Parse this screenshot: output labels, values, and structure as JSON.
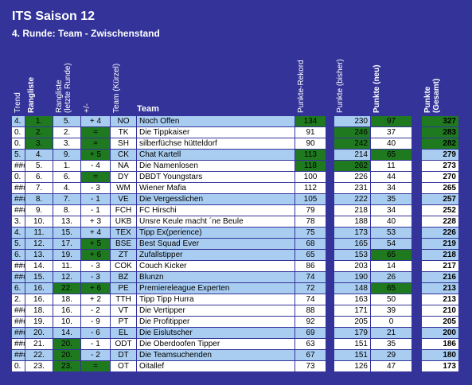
{
  "header": {
    "title": "ITS Saison 12",
    "subtitle": "4. Runde: Team - Zwischenstand"
  },
  "table": {
    "columns": [
      "Trend",
      "Rangliste",
      "Rangliste (letzte Runde)",
      "+/-",
      "Team (Kürzel)",
      "Team",
      "Punkte-Rekord",
      "Punkte (bisher)",
      "Punkte (neu)",
      "Punkte (Gesamt)"
    ],
    "rows": [
      [
        "4.",
        "1.",
        "5.",
        "+ 4",
        "NO",
        "Noch Offen",
        134,
        230,
        97,
        327
      ],
      [
        "0.",
        "2.",
        "2.",
        "=",
        "TK",
        "Die Tippkaiser",
        91,
        246,
        37,
        283
      ],
      [
        "0.",
        "3.",
        "3.",
        "=",
        "SH",
        "silberfüchse hütteldorf",
        90,
        242,
        40,
        282
      ],
      [
        "5.",
        "4.",
        "9.",
        "+ 5",
        "CK",
        "Chat Kartell",
        113,
        214,
        65,
        279
      ],
      [
        "###",
        "5.",
        "1.",
        "- 4",
        "NA",
        "Die Namenlosen",
        118,
        262,
        11,
        273
      ],
      [
        "0.",
        "6.",
        "6.",
        "=",
        "DY",
        "DBDT Youngstars",
        100,
        226,
        44,
        270
      ],
      [
        "###",
        "7.",
        "4.",
        "- 3",
        "WM",
        "Wiener Mafia",
        112,
        231,
        34,
        265
      ],
      [
        "###",
        "8.",
        "7.",
        "- 1",
        "VE",
        "Die Vergesslichen",
        105,
        222,
        35,
        257
      ],
      [
        "###",
        "9.",
        "8.",
        "- 1",
        "FCH",
        "FC Hirschi",
        79,
        218,
        34,
        252
      ],
      [
        "3.",
        "10.",
        "13.",
        "+ 3",
        "UKB",
        "Unsre Keule macht ´ne Beule",
        78,
        188,
        40,
        228
      ],
      [
        "4.",
        "11.",
        "15.",
        "+ 4",
        "TEX",
        "Tipp Ex(perience)",
        75,
        173,
        53,
        226
      ],
      [
        "5.",
        "12.",
        "17.",
        "+ 5",
        "BSE",
        "Best Squad Ever",
        68,
        165,
        54,
        219
      ],
      [
        "6.",
        "13.",
        "19.",
        "+ 6",
        "ZT",
        "Zufallstipper",
        65,
        153,
        65,
        218
      ],
      [
        "###",
        "14.",
        "11.",
        "- 3",
        "COK",
        "Couch Kicker",
        86,
        203,
        14,
        217
      ],
      [
        "###",
        "15.",
        "12.",
        "- 3",
        "BZ",
        "Blunzn",
        74,
        190,
        26,
        216
      ],
      [
        "6.",
        "16.",
        "22.",
        "+ 6",
        "PE",
        "Premiereleague Experten",
        72,
        148,
        65,
        213
      ],
      [
        "2.",
        "16.",
        "18.",
        "+ 2",
        "TTH",
        "Tipp Tipp Hurra",
        74,
        163,
        50,
        213
      ],
      [
        "###",
        "18.",
        "16.",
        "- 2",
        "VT",
        "Die Vertipper",
        88,
        171,
        39,
        210
      ],
      [
        "###",
        "19.",
        "10.",
        "- 9",
        "PT",
        "Die Profitipper",
        92,
        205,
        0,
        205
      ],
      [
        "###",
        "20.",
        "14.",
        "- 6",
        "EL",
        "Die Eislutscher",
        69,
        179,
        21,
        200
      ],
      [
        "###",
        "21.",
        "20.",
        "- 1",
        "ODT",
        "Die Oberdoofen Tipper",
        63,
        151,
        35,
        186
      ],
      [
        "###",
        "22.",
        "20.",
        "- 2",
        "DT",
        "Die Teamsuchenden",
        67,
        151,
        29,
        180
      ],
      [
        "0.",
        "23.",
        "23.",
        "=",
        "OT",
        "Oitallef",
        73,
        126,
        47,
        173
      ]
    ]
  }
}
